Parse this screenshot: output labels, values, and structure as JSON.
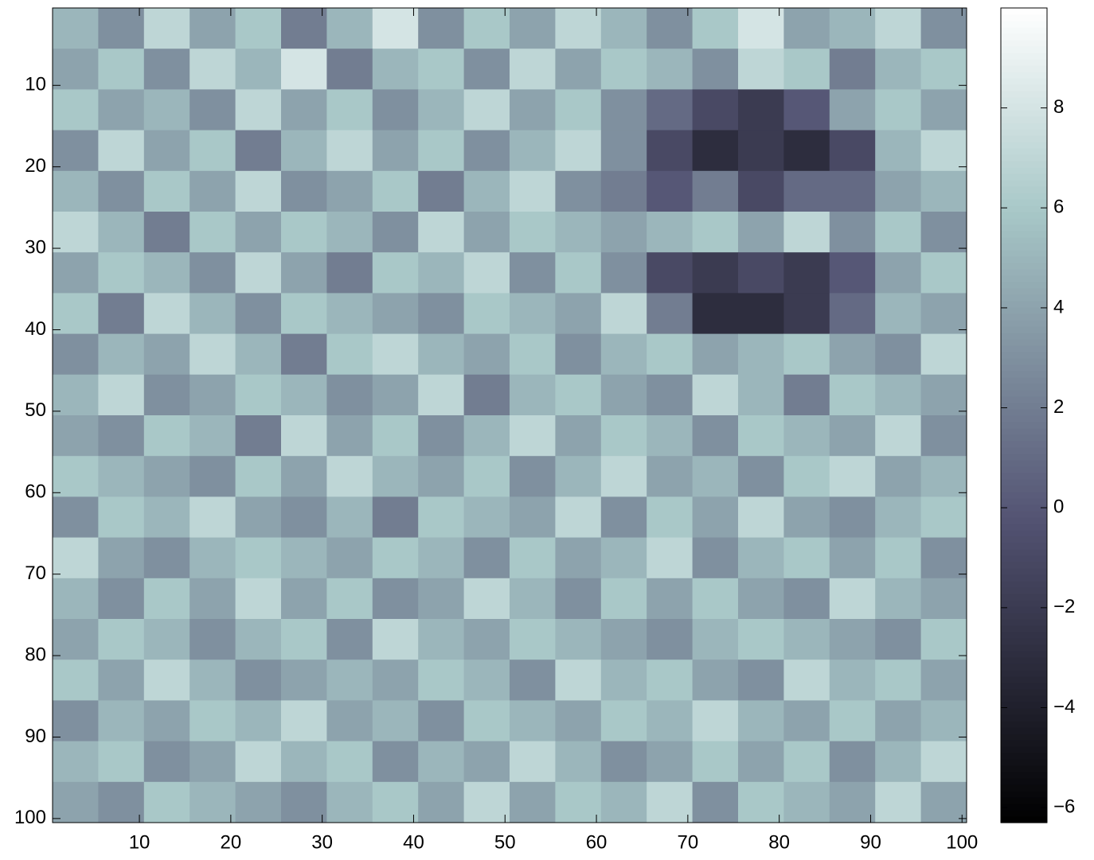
{
  "chart_data": {
    "type": "heatmap",
    "colormap": "bone",
    "xlim": [
      0.5,
      100.5
    ],
    "ylim": [
      0.5,
      100.5
    ],
    "y_reversed": true,
    "xticks": [
      10,
      20,
      30,
      40,
      50,
      60,
      70,
      80,
      90,
      100
    ],
    "yticks": [
      10,
      20,
      30,
      40,
      50,
      60,
      70,
      80,
      90,
      100
    ],
    "clim": [
      -6.3,
      10
    ],
    "cticks": [
      {
        "value": -6,
        "label": "−6"
      },
      {
        "value": -4,
        "label": "−4"
      },
      {
        "value": -2,
        "label": "−2"
      },
      0,
      2,
      4,
      6,
      8
    ],
    "values": [
      [
        5,
        3,
        7,
        4,
        6,
        2,
        5,
        8,
        3,
        6,
        4,
        7,
        5,
        3,
        6,
        8,
        4,
        5,
        7,
        3
      ],
      [
        4,
        6,
        3,
        7,
        5,
        8,
        2,
        5,
        6,
        3,
        7,
        4,
        6,
        5,
        3,
        7,
        6,
        2,
        5,
        6
      ],
      [
        6,
        4,
        5,
        3,
        7,
        4,
        6,
        3,
        5,
        7,
        4,
        6,
        3,
        1,
        -1,
        -2,
        0,
        4,
        6,
        4
      ],
      [
        3,
        7,
        4,
        6,
        2,
        5,
        7,
        4,
        6,
        3,
        5,
        7,
        3,
        -1,
        -3,
        -2,
        -3,
        -1,
        5,
        7
      ],
      [
        5,
        3,
        6,
        4,
        7,
        3,
        4,
        6,
        2,
        5,
        7,
        3,
        2,
        0,
        2,
        -1,
        1,
        1,
        4,
        5
      ],
      [
        7,
        5,
        2,
        6,
        4,
        6,
        5,
        3,
        7,
        4,
        6,
        5,
        4,
        5,
        6,
        4,
        7,
        3,
        6,
        3
      ],
      [
        4,
        6,
        5,
        3,
        7,
        4,
        2,
        6,
        5,
        7,
        3,
        6,
        3,
        -1,
        -2,
        -1,
        -2,
        0,
        4,
        6
      ],
      [
        6,
        2,
        7,
        5,
        3,
        6,
        5,
        4,
        3,
        6,
        5,
        4,
        7,
        2,
        -3,
        -3,
        -2,
        1,
        5,
        4
      ],
      [
        3,
        5,
        4,
        7,
        5,
        2,
        6,
        7,
        5,
        4,
        6,
        3,
        5,
        6,
        4,
        5,
        6,
        4,
        3,
        7
      ],
      [
        5,
        7,
        3,
        4,
        6,
        5,
        3,
        4,
        7,
        2,
        5,
        6,
        4,
        3,
        7,
        5,
        2,
        6,
        5,
        4
      ],
      [
        4,
        3,
        6,
        5,
        2,
        7,
        4,
        6,
        3,
        5,
        7,
        4,
        6,
        5,
        3,
        6,
        5,
        4,
        7,
        3
      ],
      [
        6,
        5,
        4,
        3,
        6,
        4,
        7,
        5,
        4,
        6,
        3,
        5,
        7,
        4,
        5,
        3,
        6,
        7,
        4,
        5
      ],
      [
        3,
        6,
        5,
        7,
        4,
        3,
        5,
        2,
        6,
        5,
        4,
        7,
        3,
        6,
        4,
        7,
        4,
        3,
        5,
        6
      ],
      [
        7,
        4,
        3,
        5,
        6,
        5,
        4,
        6,
        5,
        3,
        6,
        4,
        5,
        7,
        3,
        5,
        6,
        4,
        6,
        3
      ],
      [
        5,
        3,
        6,
        4,
        7,
        4,
        6,
        3,
        4,
        7,
        5,
        3,
        6,
        4,
        6,
        4,
        3,
        7,
        5,
        4
      ],
      [
        4,
        6,
        5,
        3,
        5,
        6,
        3,
        7,
        5,
        4,
        6,
        5,
        4,
        3,
        5,
        6,
        5,
        4,
        3,
        6
      ],
      [
        6,
        4,
        7,
        5,
        3,
        4,
        5,
        4,
        6,
        5,
        3,
        7,
        5,
        6,
        4,
        3,
        7,
        5,
        6,
        4
      ],
      [
        3,
        5,
        4,
        6,
        5,
        7,
        4,
        5,
        3,
        6,
        5,
        4,
        6,
        5,
        7,
        5,
        4,
        6,
        4,
        5
      ],
      [
        5,
        6,
        3,
        4,
        7,
        5,
        6,
        3,
        5,
        4,
        7,
        5,
        3,
        4,
        6,
        4,
        6,
        3,
        5,
        7
      ],
      [
        4,
        3,
        6,
        5,
        4,
        3,
        5,
        6,
        4,
        7,
        4,
        6,
        5,
        7,
        3,
        6,
        5,
        4,
        7,
        4
      ]
    ]
  }
}
